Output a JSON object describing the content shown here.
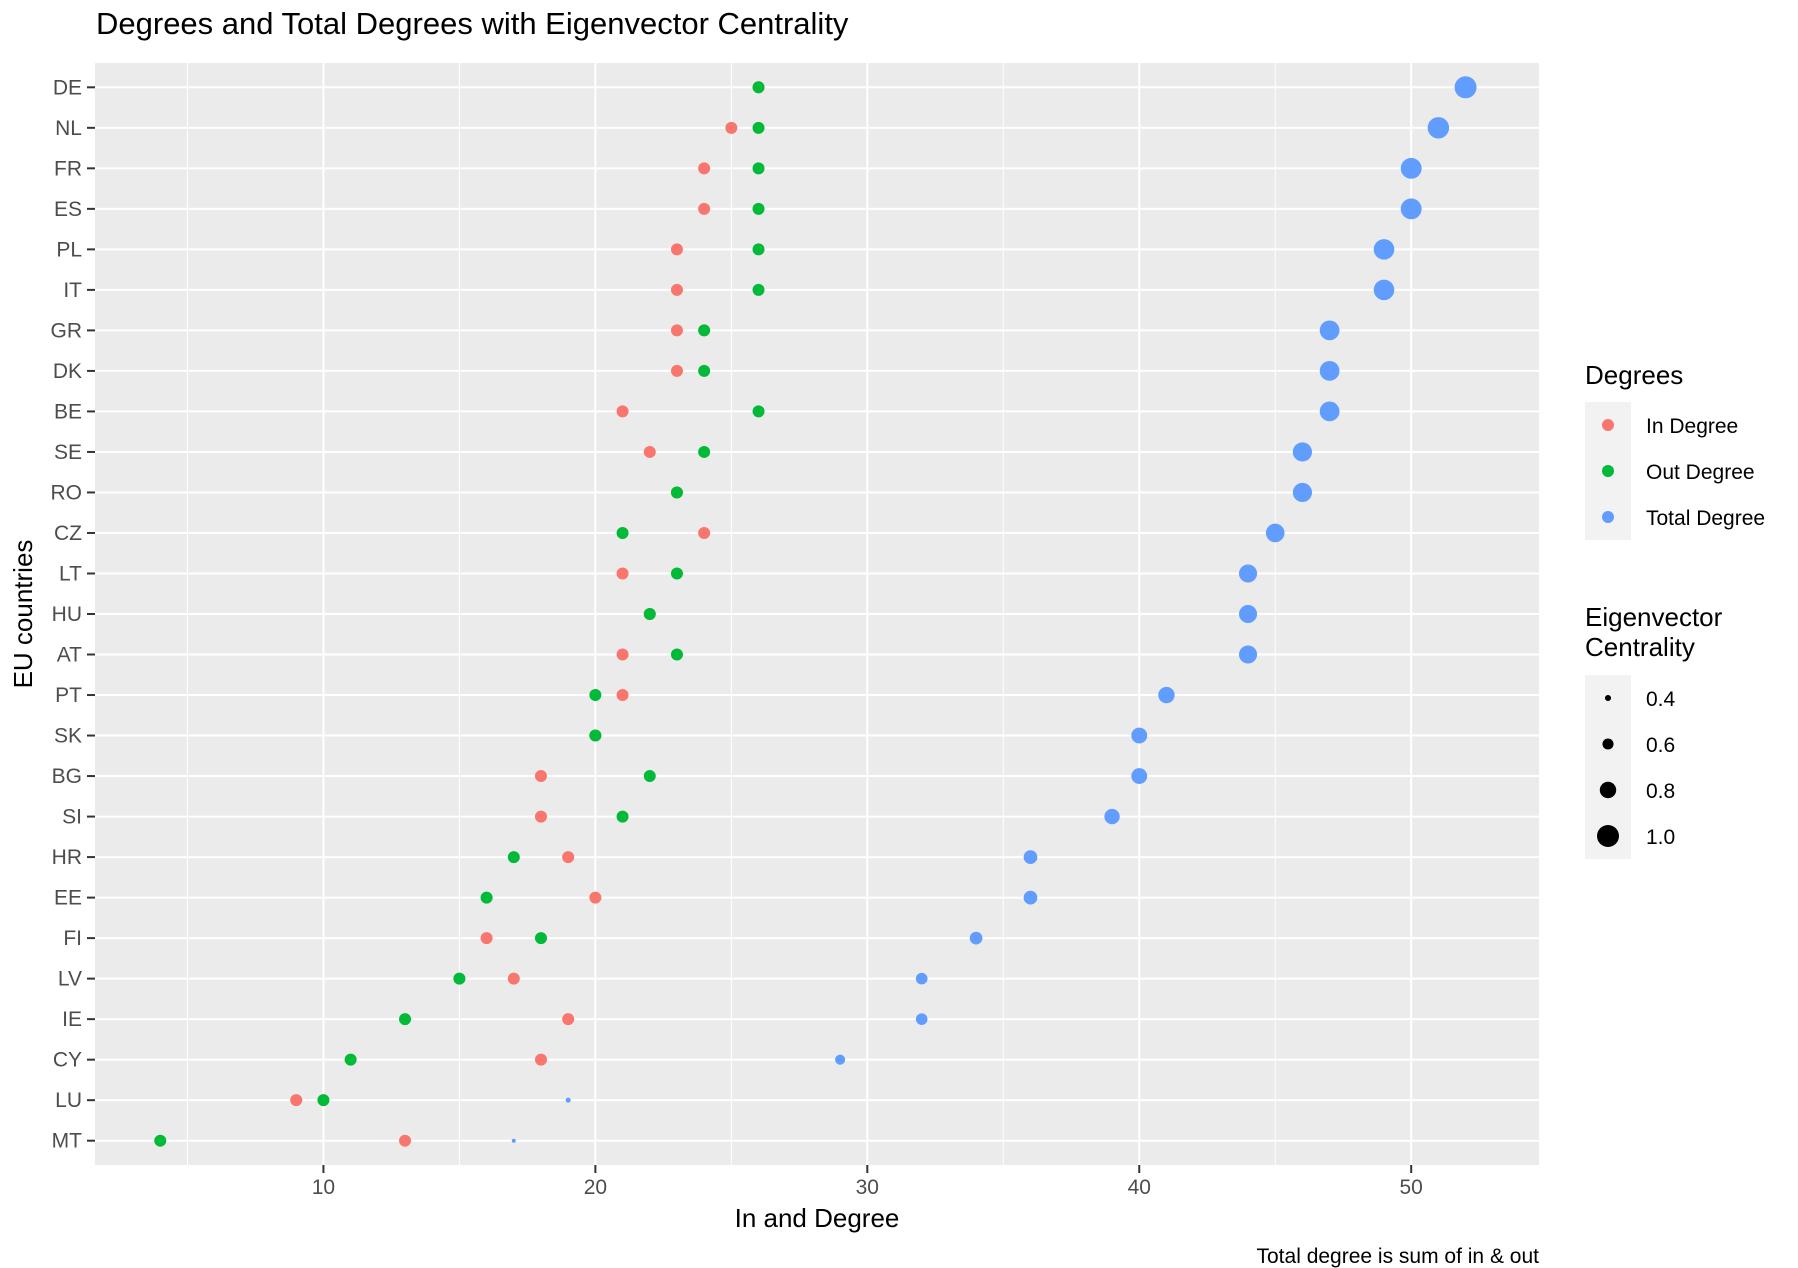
{
  "chart_data": {
    "type": "scatter",
    "title": "Degrees and Total Degrees with Eigenvector Centrality",
    "xlabel": "In and Degree",
    "ylabel": "EU countries",
    "caption": "Total degree is sum of in & out",
    "xlim": [
      1.6,
      54.7
    ],
    "x_ticks": [
      10,
      20,
      30,
      40,
      50
    ],
    "grid": true,
    "legend_position": "right",
    "categories": [
      "DE",
      "NL",
      "FR",
      "ES",
      "PL",
      "IT",
      "GR",
      "DK",
      "BE",
      "SE",
      "RO",
      "CZ",
      "LT",
      "HU",
      "AT",
      "PT",
      "SK",
      "BG",
      "SI",
      "HR",
      "EE",
      "FI",
      "LV",
      "IE",
      "CY",
      "LU",
      "MT"
    ],
    "series": [
      {
        "name": "In Degree",
        "color": "#F8766D",
        "values": [
          26,
          25,
          24,
          24,
          23,
          23,
          23,
          23,
          21,
          22,
          23,
          24,
          21,
          22,
          21,
          21,
          20,
          18,
          18,
          19,
          20,
          16,
          17,
          19,
          18,
          9,
          13
        ]
      },
      {
        "name": "Out Degree",
        "color": "#00BA38",
        "values": [
          26,
          26,
          26,
          26,
          26,
          26,
          24,
          24,
          26,
          24,
          23,
          21,
          23,
          22,
          23,
          20,
          20,
          22,
          21,
          17,
          16,
          18,
          15,
          13,
          11,
          10,
          4
        ]
      },
      {
        "name": "Total Degree",
        "color": "#619CFF",
        "values": [
          52,
          51,
          50,
          50,
          49,
          49,
          47,
          47,
          47,
          46,
          46,
          45,
          44,
          44,
          44,
          41,
          40,
          40,
          39,
          36,
          36,
          34,
          32,
          32,
          29,
          19,
          17
        ],
        "eigenvector_centrality": [
          1.0,
          0.98,
          0.96,
          0.96,
          0.95,
          0.95,
          0.92,
          0.92,
          0.92,
          0.9,
          0.9,
          0.88,
          0.86,
          0.86,
          0.86,
          0.8,
          0.78,
          0.78,
          0.76,
          0.7,
          0.7,
          0.66,
          0.62,
          0.62,
          0.56,
          0.35,
          0.3
        ]
      }
    ],
    "size_legend": {
      "title_line1": "Eigenvector",
      "title_line2": "Centrality",
      "values": [
        0.4,
        0.6,
        0.8,
        1.0
      ],
      "labels": [
        "0.4",
        "0.6",
        "0.8",
        "1.0"
      ]
    },
    "color_legend_title": "Degrees"
  }
}
